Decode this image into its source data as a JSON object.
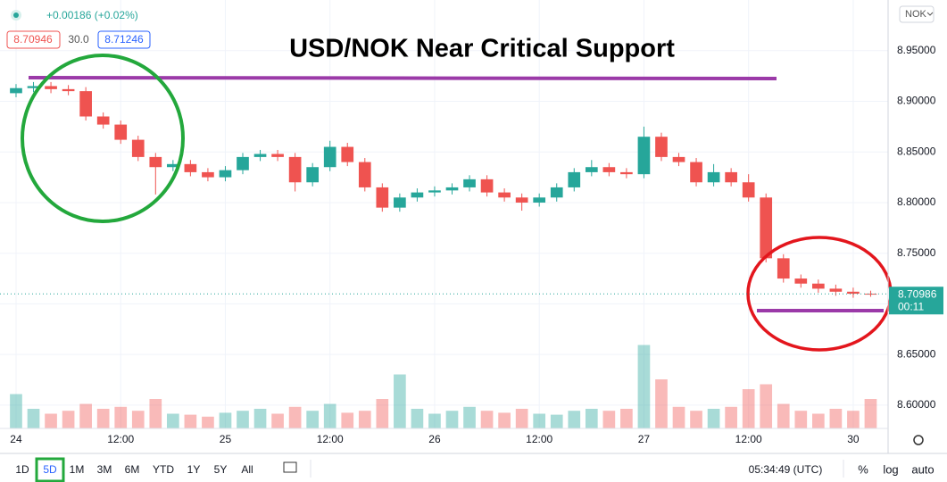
{
  "chart_data": {
    "type": "candlestick",
    "title": "USD/NOK Near Critical Support",
    "change_label": "+0.00186 (+0.02%)",
    "bid": "8.70946",
    "spread": "30.0",
    "ask": "8.71246",
    "currency": "NOK",
    "last_price": 8.70986,
    "countdown": "00:11",
    "ranges": [
      "1D",
      "5D",
      "1M",
      "3M",
      "6M",
      "YTD",
      "1Y",
      "5Y",
      "All"
    ],
    "selected_range_index": 1,
    "clock": "05:34:49 (UTC)",
    "scale_buttons": [
      "%",
      "log",
      "auto"
    ],
    "up_color": "#26a69a",
    "down_color": "#ef5350",
    "grid": true,
    "x": [
      0,
      2,
      4,
      6,
      8,
      10,
      12,
      14,
      16,
      18,
      20,
      22,
      24,
      26,
      28,
      30,
      32,
      34,
      36,
      38,
      40,
      42,
      44,
      46,
      48,
      50,
      52,
      54,
      56,
      58,
      60,
      62,
      64,
      66,
      68,
      70,
      72,
      74,
      76,
      78,
      80,
      82,
      84,
      86,
      88,
      90,
      92,
      94,
      96,
      98
    ],
    "open": [
      8.908,
      8.913,
      8.915,
      8.912,
      8.91,
      8.885,
      8.877,
      8.862,
      8.845,
      8.835,
      8.838,
      8.83,
      8.825,
      8.832,
      8.845,
      8.848,
      8.845,
      8.82,
      8.835,
      8.855,
      8.84,
      8.815,
      8.795,
      8.805,
      8.81,
      8.812,
      8.815,
      8.823,
      8.81,
      8.805,
      8.8,
      8.805,
      8.815,
      8.83,
      8.835,
      8.83,
      8.828,
      8.865,
      8.845,
      8.84,
      8.82,
      8.83,
      8.82,
      8.805,
      8.745,
      8.725,
      8.72,
      8.715,
      8.712,
      8.71
    ],
    "high": [
      8.917,
      8.919,
      8.919,
      8.916,
      8.914,
      8.889,
      8.881,
      8.866,
      8.849,
      8.842,
      8.842,
      8.834,
      8.836,
      8.849,
      8.852,
      8.852,
      8.849,
      8.839,
      8.861,
      8.859,
      8.844,
      8.819,
      8.809,
      8.814,
      8.816,
      8.819,
      8.827,
      8.827,
      8.814,
      8.809,
      8.809,
      8.819,
      8.834,
      8.842,
      8.839,
      8.834,
      8.875,
      8.869,
      8.849,
      8.844,
      8.838,
      8.834,
      8.828,
      8.809,
      8.749,
      8.729,
      8.724,
      8.719,
      8.716,
      8.713
    ],
    "low": [
      8.904,
      8.909,
      8.908,
      8.906,
      8.881,
      8.873,
      8.858,
      8.841,
      8.808,
      8.831,
      8.826,
      8.821,
      8.821,
      8.828,
      8.841,
      8.841,
      8.811,
      8.816,
      8.831,
      8.836,
      8.811,
      8.791,
      8.791,
      8.801,
      8.806,
      8.808,
      8.811,
      8.806,
      8.801,
      8.792,
      8.796,
      8.801,
      8.811,
      8.826,
      8.826,
      8.824,
      8.824,
      8.841,
      8.836,
      8.816,
      8.816,
      8.816,
      8.801,
      8.741,
      8.721,
      8.716,
      8.711,
      8.708,
      8.706,
      8.707
    ],
    "close": [
      8.913,
      8.915,
      8.912,
      8.91,
      8.885,
      8.877,
      8.862,
      8.845,
      8.835,
      8.838,
      8.83,
      8.825,
      8.832,
      8.845,
      8.848,
      8.845,
      8.82,
      8.835,
      8.855,
      8.84,
      8.815,
      8.795,
      8.805,
      8.81,
      8.812,
      8.815,
      8.823,
      8.81,
      8.805,
      8.8,
      8.805,
      8.815,
      8.83,
      8.835,
      8.83,
      8.828,
      8.865,
      8.845,
      8.84,
      8.82,
      8.83,
      8.82,
      8.805,
      8.745,
      8.725,
      8.72,
      8.715,
      8.712,
      8.71,
      8.70986
    ],
    "volume": {
      "ylim": [
        0,
        100
      ],
      "values": [
        35,
        20,
        15,
        18,
        25,
        20,
        22,
        18,
        30,
        15,
        14,
        12,
        16,
        18,
        20,
        15,
        22,
        18,
        25,
        16,
        18,
        30,
        55,
        20,
        15,
        18,
        22,
        18,
        16,
        20,
        15,
        14,
        18,
        20,
        18,
        20,
        85,
        50,
        22,
        18,
        20,
        22,
        40,
        45,
        25,
        18,
        15,
        20,
        18,
        30
      ]
    },
    "xlim": [
      -1.84,
      100
    ],
    "xticks": [
      {
        "value": 0,
        "label": "24"
      },
      {
        "value": 12,
        "label": "12:00"
      },
      {
        "value": 24,
        "label": "25"
      },
      {
        "value": 36,
        "label": "12:00"
      },
      {
        "value": 48,
        "label": "26"
      },
      {
        "value": 60,
        "label": "12:00"
      },
      {
        "value": 72,
        "label": "27"
      },
      {
        "value": 84,
        "label": "12:00"
      },
      {
        "value": 96,
        "label": "30"
      }
    ],
    "ylim": [
      8.577,
      9.0
    ],
    "yticks": [
      {
        "value": 8.6,
        "label": "8.60000"
      },
      {
        "value": 8.65,
        "label": "8.65000"
      },
      {
        "value": 8.7,
        "label": "8.70000"
      },
      {
        "value": 8.75,
        "label": "8.75000"
      },
      {
        "value": 8.8,
        "label": "8.80000"
      },
      {
        "value": 8.85,
        "label": "8.85000"
      },
      {
        "value": 8.9,
        "label": "8.90000"
      },
      {
        "value": 8.95,
        "label": "8.95000"
      }
    ]
  }
}
